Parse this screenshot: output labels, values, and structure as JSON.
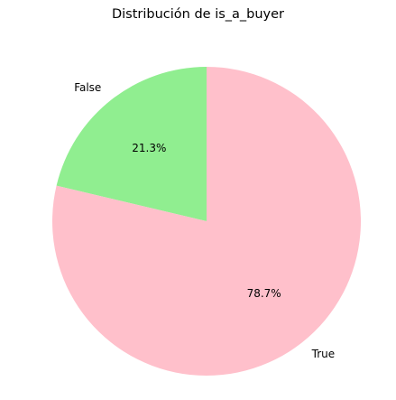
{
  "chart_data": {
    "type": "pie",
    "title": "Distribución de is_a_buyer",
    "slices": [
      {
        "label": "False",
        "value": 21.3,
        "pct_label": "21.3%",
        "color": "#90ee90"
      },
      {
        "label": "True",
        "value": 78.7,
        "pct_label": "78.7%",
        "color": "#ffc0cb"
      }
    ],
    "start_angle_deg": 90,
    "direction": "counterclockwise"
  }
}
